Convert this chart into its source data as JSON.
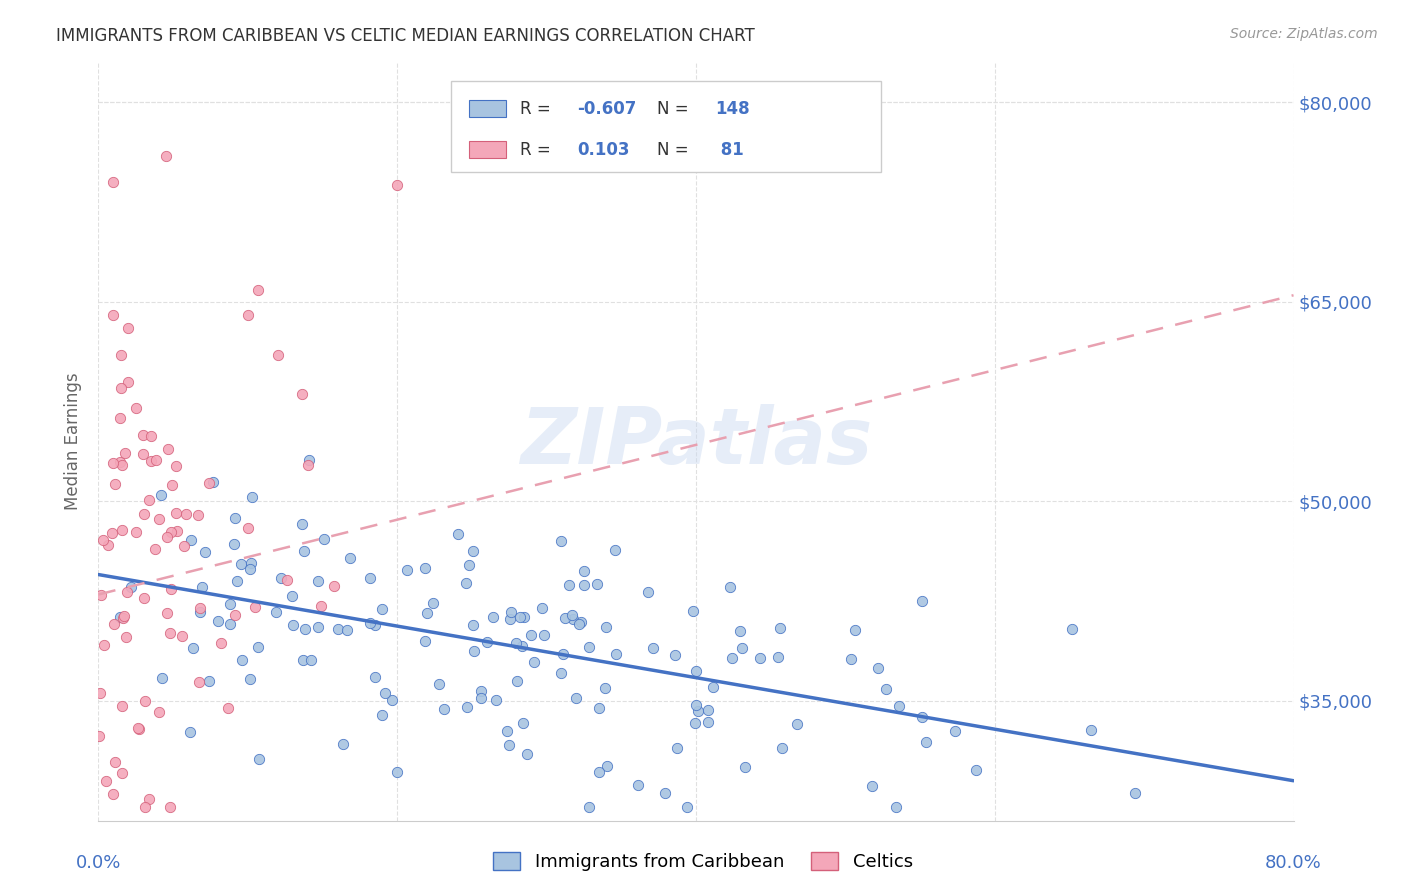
{
  "title": "IMMIGRANTS FROM CARIBBEAN VS CELTIC MEDIAN EARNINGS CORRELATION CHART",
  "source": "Source: ZipAtlas.com",
  "ylabel": "Median Earnings",
  "ytick_labels": [
    "$35,000",
    "$50,000",
    "$65,000",
    "$80,000"
  ],
  "ytick_values": [
    35000,
    50000,
    65000,
    80000
  ],
  "legend_label1": "Immigrants from Caribbean",
  "legend_label2": "Celtics",
  "color_caribbean": "#a8c4e0",
  "color_celtic": "#f4a7b9",
  "color_caribbean_line": "#4472c4",
  "color_celtic_line": "#e8a0b0",
  "background_color": "#ffffff",
  "grid_color": "#e0e0e0",
  "title_color": "#333333",
  "axis_label_color": "#4472c4",
  "watermark_text": "ZIPatlas",
  "xlim": [
    0.0,
    0.8
  ],
  "ylim": [
    26000,
    83000
  ],
  "caribbean_N": 148,
  "celtic_N": 81,
  "carib_line_x": [
    0.0,
    0.8
  ],
  "carib_line_y": [
    44500,
    29000
  ],
  "celtic_line_x": [
    0.0,
    0.8
  ],
  "celtic_line_y": [
    43000,
    65500
  ]
}
